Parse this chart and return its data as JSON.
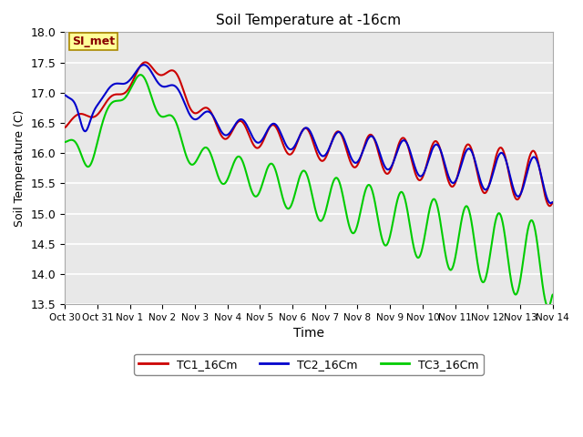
{
  "title": "Soil Temperature at -16cm",
  "xlabel": "Time",
  "ylabel": "Soil Temperature (C)",
  "ylim": [
    13.5,
    18.0
  ],
  "yticks": [
    13.5,
    14.0,
    14.5,
    15.0,
    15.5,
    16.0,
    16.5,
    17.0,
    17.5,
    18.0
  ],
  "xtick_labels": [
    "Oct 30",
    "Oct 31",
    "Nov 1",
    "Nov 2",
    "Nov 3",
    "Nov 4",
    "Nov 5",
    "Nov 6",
    "Nov 7",
    "Nov 8",
    "Nov 9",
    "Nov 10",
    "Nov 11",
    "Nov 12",
    "Nov 13",
    "Nov 14"
  ],
  "colors": {
    "TC1": "#cc0000",
    "TC2": "#0000cc",
    "TC3": "#00cc00"
  },
  "legend_labels": [
    "TC1_16Cm",
    "TC2_16Cm",
    "TC3_16Cm"
  ],
  "annotation_text": "SI_met",
  "annotation_box_color": "#ffff99",
  "annotation_box_edge": "#aa8800",
  "bg_color": "#ffffff",
  "plot_bg_color": "#e8e8e8",
  "grid_color": "#ffffff",
  "line_width": 1.5,
  "n_days": 15
}
